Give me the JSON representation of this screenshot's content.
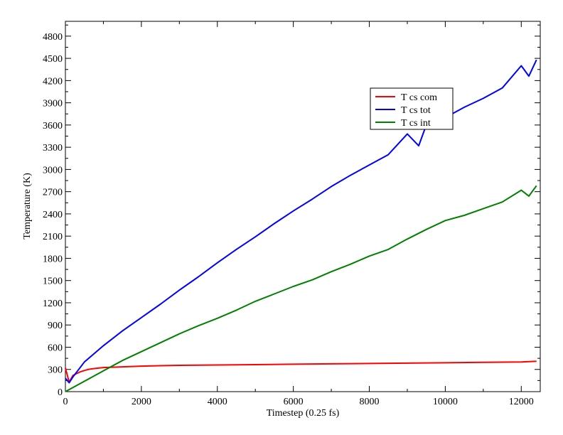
{
  "chart_data": {
    "type": "line",
    "title": "",
    "xlabel": "Timestep (0.25 fs)",
    "ylabel": "Temperature (K)",
    "xlim": [
      0,
      12500
    ],
    "ylim": [
      0,
      5000
    ],
    "x_ticks": [
      0,
      2000,
      4000,
      6000,
      8000,
      10000,
      12000
    ],
    "y_ticks": [
      0,
      300,
      600,
      900,
      1200,
      1500,
      1800,
      2100,
      2400,
      2700,
      3000,
      3300,
      3600,
      3900,
      4200,
      4500,
      4800
    ],
    "grid": false,
    "legend_position": "upper-right-inside",
    "series": [
      {
        "name": "T cs com",
        "color": "#ff0000",
        "x": [
          0,
          100,
          200,
          400,
          600,
          800,
          1000,
          1500,
          2000,
          2500,
          3000,
          4000,
          5000,
          6000,
          7000,
          8000,
          9000,
          10000,
          11000,
          12000,
          12400
        ],
        "y": [
          320,
          130,
          220,
          270,
          300,
          315,
          325,
          335,
          345,
          350,
          355,
          360,
          365,
          370,
          375,
          380,
          385,
          390,
          395,
          400,
          410
        ]
      },
      {
        "name": "T cs tot",
        "color": "#0000ff",
        "x": [
          0,
          100,
          200,
          500,
          1000,
          1500,
          2000,
          2500,
          3000,
          3500,
          4000,
          4500,
          5000,
          5500,
          6000,
          6500,
          7000,
          7500,
          8000,
          8500,
          9000,
          9300,
          9500,
          10000,
          10500,
          11000,
          11500,
          12000,
          12200,
          12400
        ],
        "y": [
          180,
          120,
          200,
          400,
          620,
          820,
          1000,
          1180,
          1370,
          1550,
          1740,
          1920,
          2090,
          2270,
          2440,
          2600,
          2770,
          2920,
          3060,
          3200,
          3480,
          3320,
          3600,
          3700,
          3840,
          3960,
          4100,
          4400,
          4260,
          4480
        ]
      },
      {
        "name": "T cs int",
        "color": "#008000",
        "x": [
          0,
          500,
          1000,
          1500,
          2000,
          2500,
          3000,
          3500,
          4000,
          4500,
          5000,
          5500,
          6000,
          6500,
          7000,
          7500,
          8000,
          8500,
          9000,
          9500,
          10000,
          10500,
          11000,
          11500,
          12000,
          12200,
          12400
        ],
        "y": [
          0,
          140,
          280,
          420,
          540,
          660,
          780,
          890,
          990,
          1100,
          1220,
          1320,
          1420,
          1510,
          1620,
          1720,
          1830,
          1920,
          2060,
          2190,
          2310,
          2380,
          2470,
          2560,
          2720,
          2640,
          2780
        ]
      }
    ]
  }
}
